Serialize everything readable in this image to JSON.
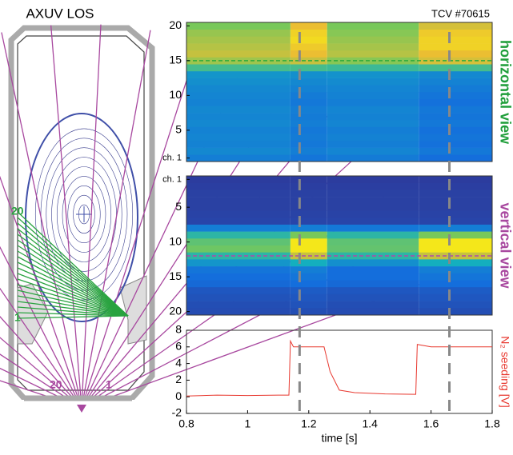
{
  "diagram": {
    "title": "AXUV LOS",
    "horizontal_labels": [
      "20",
      "1"
    ],
    "vertical_labels": [
      "20",
      "1"
    ]
  },
  "chart_data": [
    {
      "type": "heatmap",
      "title": "TCV #70615",
      "side_label": "horizontal view",
      "side_color": "#1f9e3a",
      "colormap": "parula",
      "xlim": [
        0.8,
        1.8
      ],
      "x_edges": [
        0.8,
        1.14,
        1.26,
        1.56,
        1.8
      ],
      "ylim": [
        0.5,
        20.5
      ],
      "y_direction": "up",
      "yticks": [
        {
          "value": 1,
          "label": "ch. 1"
        },
        5,
        10,
        15,
        20
      ],
      "highlight_channel": 15,
      "highlight_color": "#2eaa3c",
      "z": [
        [
          0.35,
          0.32,
          0.34,
          0.3
        ],
        [
          0.38,
          0.35,
          0.37,
          0.33
        ],
        [
          0.36,
          0.33,
          0.35,
          0.31
        ],
        [
          0.37,
          0.34,
          0.36,
          0.32
        ],
        [
          0.36,
          0.33,
          0.35,
          0.31
        ],
        [
          0.38,
          0.35,
          0.37,
          0.33
        ],
        [
          0.37,
          0.34,
          0.36,
          0.32
        ],
        [
          0.38,
          0.35,
          0.37,
          0.33
        ],
        [
          0.36,
          0.33,
          0.35,
          0.31
        ],
        [
          0.37,
          0.34,
          0.36,
          0.32
        ],
        [
          0.38,
          0.36,
          0.37,
          0.34
        ],
        [
          0.4,
          0.38,
          0.39,
          0.36
        ],
        [
          0.42,
          0.4,
          0.41,
          0.38
        ],
        [
          0.6,
          0.6,
          0.58,
          0.6
        ],
        [
          0.75,
          0.8,
          0.72,
          0.82
        ],
        [
          0.8,
          0.85,
          0.78,
          0.85
        ],
        [
          0.78,
          0.88,
          0.76,
          0.9
        ],
        [
          0.76,
          0.92,
          0.74,
          0.9
        ],
        [
          0.74,
          0.9,
          0.72,
          0.88
        ],
        [
          0.7,
          0.85,
          0.7,
          0.82
        ]
      ]
    },
    {
      "type": "heatmap",
      "side_label": "vertical view",
      "side_color": "#a8489f",
      "colormap": "parula",
      "xlim": [
        0.8,
        1.8
      ],
      "x_edges": [
        0.8,
        1.14,
        1.26,
        1.56,
        1.8
      ],
      "ylim": [
        0.5,
        20.5
      ],
      "y_direction": "down",
      "yticks": [
        {
          "value": 1,
          "label": "ch. 1"
        },
        5,
        10,
        15,
        20
      ],
      "highlight_channel": 12,
      "highlight_color": "#b04aa8",
      "z": [
        [
          0.08,
          0.08,
          0.08,
          0.08
        ],
        [
          0.09,
          0.09,
          0.09,
          0.09
        ],
        [
          0.1,
          0.1,
          0.1,
          0.1
        ],
        [
          0.1,
          0.1,
          0.1,
          0.1
        ],
        [
          0.1,
          0.1,
          0.1,
          0.1
        ],
        [
          0.11,
          0.11,
          0.11,
          0.11
        ],
        [
          0.12,
          0.12,
          0.12,
          0.12
        ],
        [
          0.35,
          0.35,
          0.33,
          0.35
        ],
        [
          0.55,
          0.7,
          0.55,
          0.7
        ],
        [
          0.65,
          0.95,
          0.65,
          0.95
        ],
        [
          0.68,
          0.95,
          0.66,
          0.95
        ],
        [
          0.55,
          0.8,
          0.55,
          0.8
        ],
        [
          0.42,
          0.5,
          0.4,
          0.5
        ],
        [
          0.32,
          0.35,
          0.3,
          0.35
        ],
        [
          0.3,
          0.32,
          0.3,
          0.32
        ],
        [
          0.28,
          0.3,
          0.28,
          0.3
        ],
        [
          0.2,
          0.22,
          0.2,
          0.22
        ],
        [
          0.18,
          0.2,
          0.18,
          0.2
        ],
        [
          0.16,
          0.18,
          0.16,
          0.18
        ],
        [
          0.15,
          0.16,
          0.15,
          0.16
        ]
      ]
    },
    {
      "type": "line",
      "x_label": "time [s]",
      "y_label": "N₂ seeding [V]",
      "color": "#e8382f",
      "xlim": [
        0.8,
        1.8
      ],
      "xticks": [
        0.8,
        1,
        1.2,
        1.4,
        1.6,
        1.8
      ],
      "ylim": [
        -2,
        8
      ],
      "yticks": [
        -2,
        0,
        2,
        4,
        6,
        8
      ],
      "markers": [
        1.17,
        1.66
      ],
      "x": [
        0.8,
        0.9,
        1.0,
        1.1,
        1.135,
        1.14,
        1.15,
        1.2,
        1.25,
        1.27,
        1.3,
        1.35,
        1.45,
        1.55,
        1.555,
        1.6,
        1.7,
        1.8
      ],
      "values": [
        0.1,
        0.2,
        0.15,
        0.2,
        0.2,
        6.7,
        6.0,
        6.0,
        6.0,
        3.0,
        0.8,
        0.5,
        0.35,
        0.3,
        6.3,
        6.0,
        6.0,
        6.0
      ]
    }
  ]
}
